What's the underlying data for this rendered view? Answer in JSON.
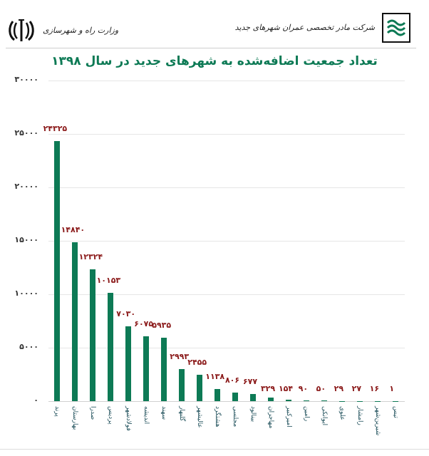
{
  "header": {
    "ministry": "وزارت راه و شهرسازی",
    "company": "شرکت مادر تخصصی عمران شهرهای جدید",
    "left_emblem_icon": "iran-emblem-icon",
    "right_logo_icon": "new-towns-company-logo-icon"
  },
  "title": "تعداد جمعیت اضافه‌شده به شهرهای جدید در سال ۱۳۹۸",
  "colors": {
    "bar": "#0d7a55",
    "title": "#0d7a55",
    "value_label": "#8b1a1a"
  },
  "y_ticks": [
    "۳۰۰۰۰",
    "۲۵۰۰۰",
    "۲۰۰۰۰",
    "۱۵۰۰۰",
    "۱۰۰۰۰",
    "۵۰۰۰",
    "۰"
  ],
  "chart_data": {
    "type": "bar",
    "title": "تعداد جمعیت اضافه‌شده به شهرهای جدید در سال ۱۳۹۸",
    "xlabel": "",
    "ylabel": "",
    "ylim": [
      0,
      30000
    ],
    "yticks": [
      0,
      5000,
      10000,
      15000,
      20000,
      25000,
      30000
    ],
    "grid": true,
    "legend": null,
    "categories": [
      "پرند",
      "بهارستان",
      "صدرا",
      "پردیس",
      "فولادشهر",
      "اندیشه",
      "سهند",
      "گلبهار",
      "عالیشهر",
      "هشتگرد",
      "مجلسی",
      "بینالود",
      "مهاجران",
      "امیرکبیر",
      "رامین",
      "ایوانکی",
      "علوی",
      "رامشار",
      "شیرین‌شهر",
      "تیس"
    ],
    "values": [
      24325,
      14840,
      12324,
      10153,
      7030,
      6075,
      5935,
      2993,
      2455,
      1138,
      806,
      677,
      329,
      154,
      90,
      50,
      29,
      27,
      16,
      1
    ],
    "value_labels": [
      "۲۴۳۲۵",
      "۱۴۸۴۰",
      "۱۲۳۲۴",
      "۱۰۱۵۳",
      "۷۰۳۰",
      "۶۰۷۵",
      "۵۹۳۵",
      "۲۹۹۳",
      "۲۴۵۵",
      "۱۱۳۸",
      "۸۰۶",
      "۶۷۷",
      "۳۲۹",
      "۱۵۴",
      "۹۰",
      "۵۰",
      "۲۹",
      "۲۷",
      "۱۶",
      "۱"
    ]
  }
}
